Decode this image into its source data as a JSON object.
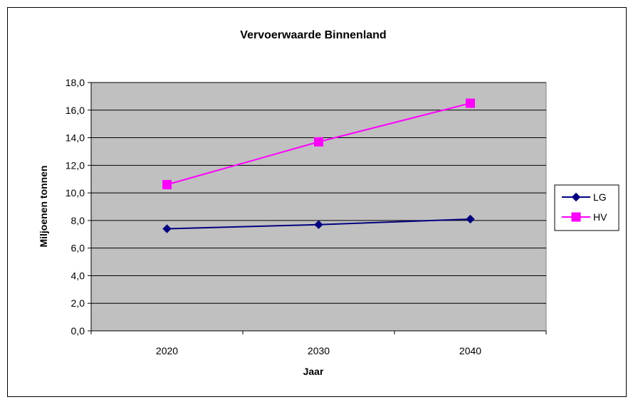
{
  "chart_data": {
    "type": "line",
    "title": "Vervoerwaarde Binnenland",
    "xlabel": "Jaar",
    "ylabel": "Miljoenen tonnen",
    "categories": [
      "2020",
      "2030",
      "2040"
    ],
    "ylim": [
      0,
      18
    ],
    "ytick_step": 2,
    "ytick_labels": [
      "0,0",
      "2,0",
      "4,0",
      "6,0",
      "8,0",
      "10,0",
      "12,0",
      "14,0",
      "16,0",
      "18,0"
    ],
    "grid": true,
    "legend_position": "right",
    "plot_background": "#c0c0c0",
    "series": [
      {
        "name": "LG",
        "values": [
          7.4,
          7.7,
          8.1
        ],
        "color": "#000080",
        "marker": "diamond"
      },
      {
        "name": "HV",
        "values": [
          10.6,
          13.7,
          16.5
        ],
        "color": "#ff00ff",
        "marker": "square"
      }
    ]
  }
}
